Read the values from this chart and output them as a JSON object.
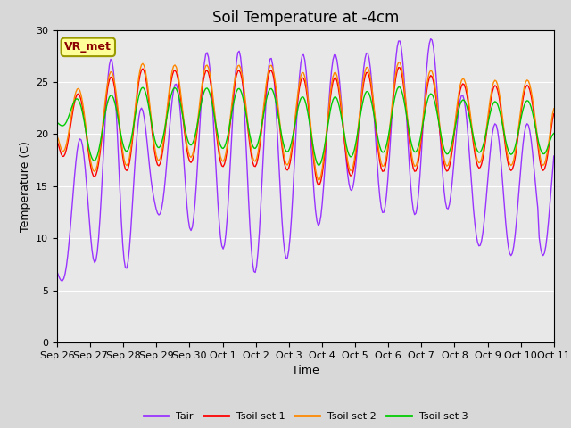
{
  "title": "Soil Temperature at -4cm",
  "xlabel": "Time",
  "ylabel": "Temperature (C)",
  "ylim": [
    0,
    30
  ],
  "yticks": [
    0,
    5,
    10,
    15,
    20,
    25,
    30
  ],
  "xlabels": [
    "Sep 26",
    "Sep 27",
    "Sep 28",
    "Sep 29",
    "Sep 30",
    "Oct 1",
    "Oct 2",
    "Oct 3",
    "Oct 4",
    "Oct 5",
    "Oct 6",
    "Oct 7",
    "Oct 8",
    "Oct 9",
    "Oct 10",
    "Oct 11"
  ],
  "annotation_text": "VR_met",
  "annotation_color": "#8B0000",
  "annotation_bg": "#FFFF99",
  "plot_bg_color": "#E8E8E8",
  "fig_bg_color": "#D8D8D8",
  "line_colors": {
    "Tair": "#9933FF",
    "Tsoil1": "#FF0000",
    "Tsoil2": "#FF8800",
    "Tsoil3": "#00CC00"
  },
  "line_labels": [
    "Tair",
    "Tsoil set 1",
    "Tsoil set 2",
    "Tsoil set 3"
  ],
  "title_fontsize": 12,
  "axis_label_fontsize": 9,
  "tick_fontsize": 8
}
